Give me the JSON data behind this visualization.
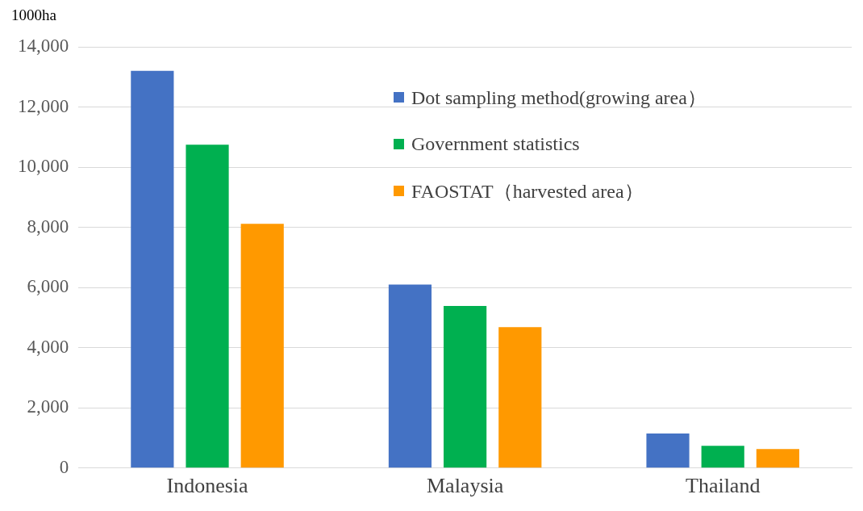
{
  "chart_data": {
    "type": "bar",
    "ylabel": "1000ha",
    "categories": [
      "Indonesia",
      "Malaysia",
      "Thailand"
    ],
    "series": [
      {
        "name": "Dot sampling method(growing area）",
        "color": "#4472c4",
        "values": [
          13200,
          6100,
          1150
        ]
      },
      {
        "name": "Government statistics",
        "color": "#00b050",
        "values": [
          10750,
          5390,
          740
        ]
      },
      {
        "name": "FAOSTAT（harvested area）",
        "color": "#ff9900",
        "values": [
          8120,
          4680,
          630
        ]
      }
    ],
    "ylim": [
      0,
      14000
    ],
    "yticks": [
      0,
      {
        "value": 2000,
        "label": "2,000"
      },
      {
        "value": 4000,
        "label": "4,000"
      },
      {
        "value": 6000,
        "label": "6,000"
      },
      {
        "value": 8000,
        "label": "8,000"
      },
      {
        "value": 10000,
        "label": "10,000"
      },
      {
        "value": 12000,
        "label": "12,000"
      },
      {
        "value": 14000,
        "label": "14,000"
      }
    ],
    "grid": "y",
    "legend": "top right"
  }
}
